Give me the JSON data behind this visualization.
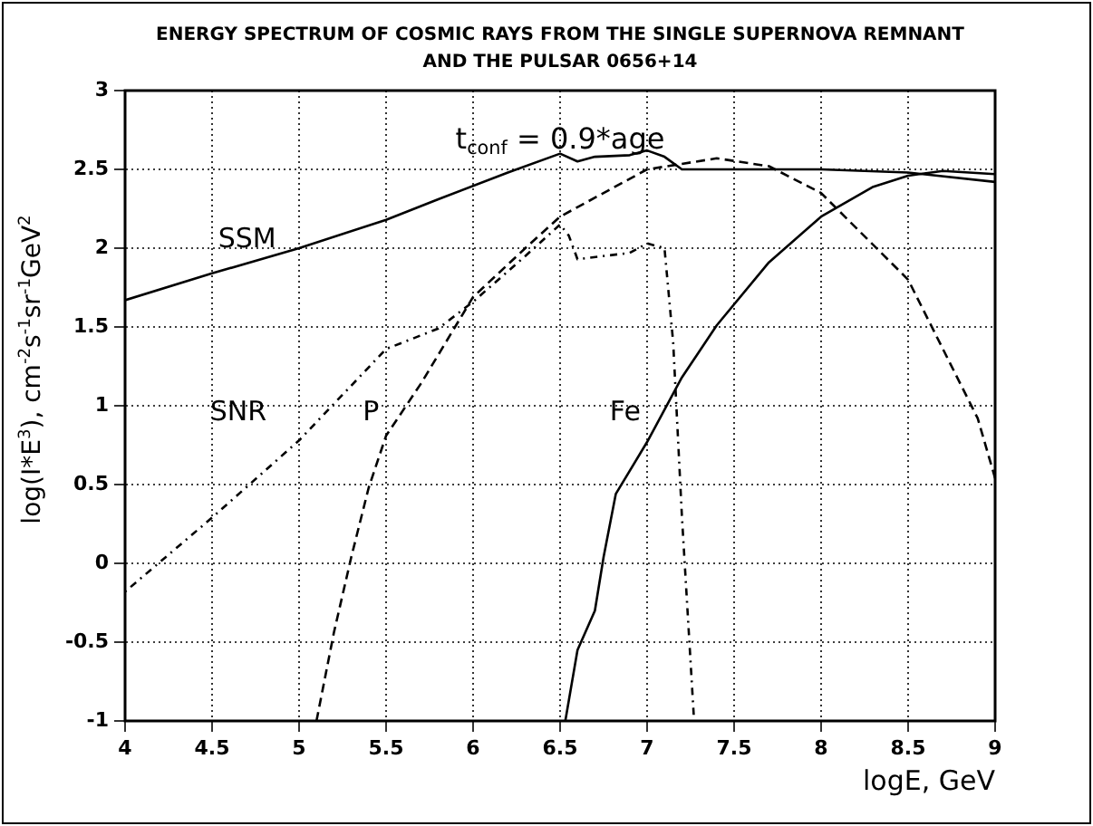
{
  "chart_data": {
    "type": "line",
    "title": "ENERGY SPECTRUM OF COSMIC RAYS FROM THE SINGLE SUPERNOVA REMNANT\nAND THE PULSAR 0656+14",
    "xlabel": "logE, GeV",
    "ylabel": "log(I*E$^{3}$), cm$^{-2}$s$^{-1}$sr$^{-1}$GeV$^{2}$",
    "annotations": [
      "t$_{conf}$ = 0.9*age"
    ],
    "xlim": [
      4,
      9
    ],
    "xticks": [
      4,
      4.5,
      5,
      5.5,
      6,
      6.5,
      7,
      7.5,
      8,
      8.5,
      9
    ],
    "ylim": [
      -1,
      3
    ],
    "yticks": [
      -1,
      -0.5,
      0,
      0.5,
      1,
      1.5,
      2,
      2.5,
      3
    ],
    "grid": true,
    "legend": false,
    "marker": "none",
    "series": [
      {
        "name": "SSM",
        "color": "#000000",
        "line_style": "solid",
        "x": [
          4,
          4.5,
          5,
          5.5,
          5.8,
          6.2,
          6.5,
          6.6,
          6.7,
          6.9,
          7.0,
          7.1,
          7.2,
          7.5,
          8,
          8.5,
          9
        ],
        "values": [
          1.67,
          1.84,
          2.0,
          2.18,
          2.31,
          2.48,
          2.6,
          2.55,
          2.58,
          2.59,
          2.62,
          2.58,
          2.5,
          2.5,
          2.5,
          2.48,
          2.42
        ]
      },
      {
        "name": "SNR",
        "color": "#000000",
        "line_style": "dotted",
        "x": [
          4,
          4.5,
          5,
          5.5,
          5.8,
          6,
          6.3,
          6.5,
          6.55,
          6.6,
          6.9,
          7.0,
          7.1,
          7.15,
          7.2,
          7.27
        ],
        "values": [
          -0.18,
          0.29,
          0.78,
          1.36,
          1.49,
          1.66,
          1.95,
          2.15,
          2.08,
          1.93,
          1.97,
          2.03,
          2.0,
          1.4,
          0.3,
          -1
        ]
      },
      {
        "name": "P",
        "color": "#000000",
        "line_style": "dashed",
        "x": [
          5.1,
          5.2,
          5.3,
          5.4,
          5.5,
          5.7,
          6.0,
          6.3,
          6.5,
          7.0,
          7.4,
          7.7,
          8.0,
          8.2,
          8.5,
          8.7,
          8.9,
          9.0
        ],
        "values": [
          -1,
          -0.44,
          0.04,
          0.48,
          0.81,
          1.14,
          1.69,
          2.0,
          2.2,
          2.5,
          2.57,
          2.52,
          2.35,
          2.13,
          1.8,
          1.36,
          0.92,
          0.54
        ]
      },
      {
        "name": "Fe",
        "color": "#000000",
        "line_style": "solid",
        "x": [
          6.53,
          6.6,
          6.7,
          6.75,
          6.82,
          7.0,
          7.2,
          7.4,
          7.7,
          8.0,
          8.3,
          8.5,
          8.7,
          9.0
        ],
        "values": [
          -1,
          -0.55,
          -0.3,
          0.04,
          0.44,
          0.77,
          1.18,
          1.51,
          1.91,
          2.2,
          2.39,
          2.46,
          2.49,
          2.47
        ]
      }
    ]
  }
}
